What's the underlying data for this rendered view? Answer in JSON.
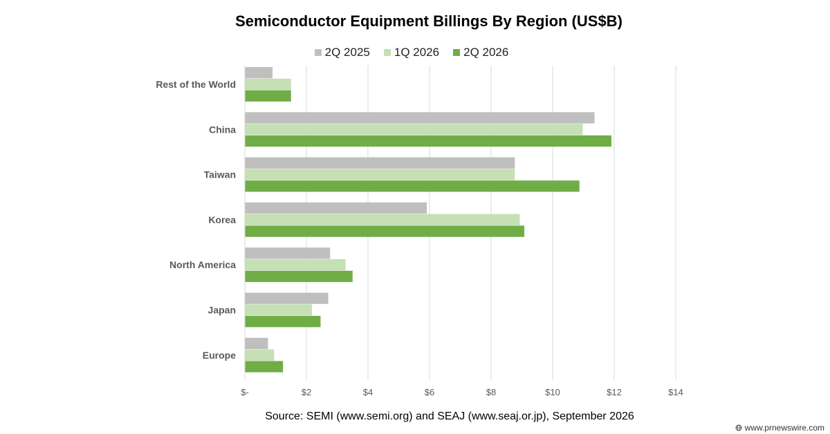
{
  "watermark": "www.prnewswire.com",
  "chart_data": {
    "type": "bar",
    "orientation": "horizontal",
    "title": "Semiconductor Equipment Billings By Region (US$B)",
    "source": "Source: SEMI (www.semi.org) and SEAJ (www.seaj.or.jp), September 2026",
    "categories": [
      "Rest of the World",
      "China",
      "Taiwan",
      "Korea",
      "North America",
      "Japan",
      "Europe"
    ],
    "series": [
      {
        "name": "2Q 2025",
        "color": "#bfbfbf",
        "values": [
          0.9,
          11.36,
          8.77,
          5.91,
          2.77,
          2.71,
          0.75
        ]
      },
      {
        "name": "1Q 2026",
        "color": "#c5e0b4",
        "values": [
          1.5,
          10.98,
          8.77,
          8.93,
          3.27,
          2.18,
          0.95
        ]
      },
      {
        "name": "2Q 2026",
        "color": "#70ad47",
        "values": [
          1.5,
          11.91,
          10.87,
          9.08,
          3.5,
          2.46,
          1.24
        ]
      }
    ],
    "xlim": [
      0,
      14
    ],
    "xticks": [
      0,
      2,
      4,
      6,
      8,
      10,
      12,
      14
    ],
    "xtick_labels": [
      "$-",
      "$2",
      "$4",
      "$6",
      "$8",
      "$10",
      "$12",
      "$14"
    ],
    "grid": "vertical",
    "legend_position": "top"
  }
}
